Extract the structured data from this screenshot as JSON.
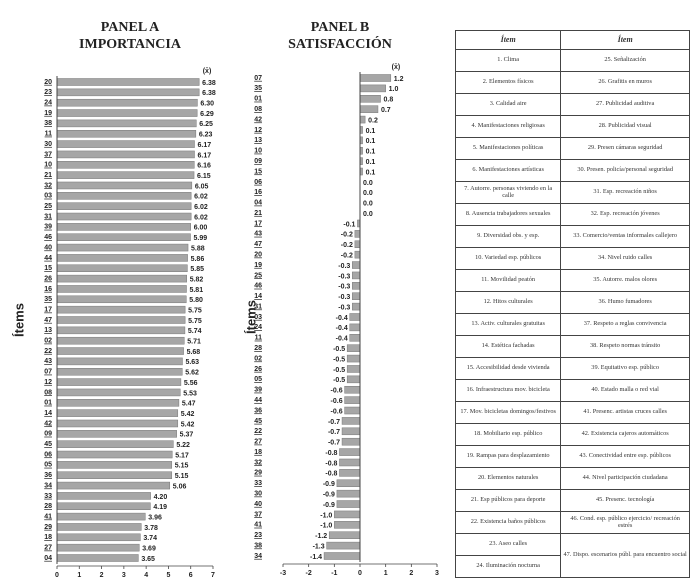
{
  "chart_data": [
    {
      "type": "bar",
      "title": "PANEL A",
      "subtitle": "IMPORTANCIA",
      "y_label": "Ítems",
      "value_header": "(x̄)",
      "categories": [
        "20",
        "23",
        "24",
        "19",
        "38",
        "11",
        "30",
        "37",
        "10",
        "21",
        "32",
        "03",
        "25",
        "31",
        "39",
        "46",
        "40",
        "44",
        "15",
        "26",
        "16",
        "35",
        "17",
        "47",
        "13",
        "02",
        "22",
        "43",
        "07",
        "12",
        "08",
        "01",
        "14",
        "42",
        "09",
        "45",
        "06",
        "05",
        "36",
        "34",
        "33",
        "28",
        "41",
        "29",
        "18",
        "27",
        "04"
      ],
      "values": [
        6.38,
        6.38,
        6.3,
        6.29,
        6.25,
        6.23,
        6.17,
        6.17,
        6.16,
        6.15,
        6.05,
        6.02,
        6.02,
        6.02,
        6.0,
        5.99,
        5.88,
        5.86,
        5.85,
        5.82,
        5.81,
        5.8,
        5.75,
        5.75,
        5.74,
        5.71,
        5.68,
        5.63,
        5.62,
        5.56,
        5.53,
        5.47,
        5.42,
        5.42,
        5.37,
        5.22,
        5.17,
        5.15,
        5.15,
        5.06,
        4.2,
        4.19,
        3.96,
        3.78,
        3.74,
        3.69,
        3.65
      ],
      "value_labels": [
        "6.38",
        "6.38",
        "6.30",
        "6.29",
        "6.25",
        "6.23",
        "6.17",
        "6.17",
        "6.16",
        "6.15",
        "6.05",
        "6.02",
        "6.02",
        "6.02",
        "6.00",
        "5.99",
        "5.88",
        "5.86",
        "5.85",
        "5.82",
        "5.81",
        "5.80",
        "5.75",
        "5.75",
        "5.74",
        "5.71",
        "5.68",
        "5.63",
        "5.62",
        "5.56",
        "5.53",
        "5.47",
        "5.42",
        "5.42",
        "5.37",
        "5.22",
        "5.17",
        "5.15",
        "5.15",
        "5.06",
        "4.20",
        "4.19",
        "3.96",
        "3.78",
        "3.74",
        "3.69",
        "3.65"
      ],
      "color": "#a6a6a6",
      "xlim": [
        0,
        7
      ],
      "xticks": [
        0,
        1,
        2,
        3,
        4,
        5,
        6,
        7
      ]
    },
    {
      "type": "bar",
      "title": "PANEL B",
      "subtitle": "SATISFACCIÓN",
      "y_label": "Ítems",
      "value_header": "(x̄)",
      "categories": [
        "07",
        "35",
        "01",
        "08",
        "42",
        "12",
        "13",
        "10",
        "09",
        "15",
        "06",
        "16",
        "04",
        "21",
        "17",
        "43",
        "47",
        "20",
        "19",
        "25",
        "46",
        "14",
        "31",
        "03",
        "24",
        "11",
        "28",
        "02",
        "26",
        "05",
        "39",
        "44",
        "36",
        "45",
        "22",
        "27",
        "18",
        "32",
        "29",
        "33",
        "30",
        "40",
        "37",
        "41",
        "23",
        "38",
        "34"
      ],
      "values": [
        1.2,
        1.0,
        0.8,
        0.7,
        0.2,
        0.1,
        0.1,
        0.1,
        0.1,
        0.1,
        0.0,
        0.0,
        0.0,
        0.0,
        -0.1,
        -0.2,
        -0.2,
        -0.2,
        -0.3,
        -0.3,
        -0.3,
        -0.3,
        -0.3,
        -0.4,
        -0.4,
        -0.4,
        -0.5,
        -0.5,
        -0.5,
        -0.5,
        -0.6,
        -0.6,
        -0.6,
        -0.7,
        -0.7,
        -0.7,
        -0.8,
        -0.8,
        -0.8,
        -0.9,
        -0.9,
        -0.9,
        -1.0,
        -1.0,
        -1.2,
        -1.3,
        -1.4
      ],
      "value_labels": [
        "1.2",
        "1.0",
        "0.8",
        "0.7",
        "0.2",
        "0.1",
        "0.1",
        "0.1",
        "0.1",
        "0.1",
        "0.0",
        "0.0",
        "0.0",
        "0.0",
        "-0.1",
        "-0.2",
        "-0.2",
        "-0.2",
        "-0.3",
        "-0.3",
        "-0.3",
        "-0.3",
        "-0.3",
        "-0.4",
        "-0.4",
        "-0.4",
        "-0.5",
        "-0.5",
        "-0.5",
        "-0.5",
        "-0.6",
        "-0.6",
        "-0.6",
        "-0.7",
        "-0.7",
        "-0.7",
        "-0.8",
        "-0.8",
        "-0.8",
        "-0.9",
        "-0.9",
        "-0.9",
        "-1.0",
        "-1.0",
        "-1.2",
        "-1.3",
        "-1.4"
      ],
      "color": "#a6a6a6",
      "xlim": [
        -3,
        3
      ],
      "xticks": [
        -3,
        -2,
        -1,
        0,
        1,
        2,
        3
      ]
    }
  ],
  "table": {
    "headers": [
      "Ítem",
      "Ítem"
    ],
    "left": [
      "1. Clima",
      "2. Elementos físicos",
      "3. Calidad aire",
      "4. Manifestaciones religiosas",
      "5. Manifestaciones políticas",
      "6. Manifestaciones artísticas",
      "7. Autorre. personas viviendo en la calle",
      "8. Ausencia trabajadores sexuales",
      "9. Diversidad obs. y esp.",
      "10. Variedad esp. públicos",
      "11. Movilidad peatón",
      "12. Hitos culturales",
      "13. Activ. culturales gratuitas",
      "14. Estética fachadas",
      "15. Accesibilidad desde vivienda",
      "16. Infraestructura mov. bicicleta",
      "17. Mov. bicicletas domingos/festivos",
      "18. Mobiliario esp. público",
      "19. Rampas para desplazamiento",
      "20. Elementos naturales",
      "21. Esp públicos para deporte",
      "22. Existencia baños públicos",
      "23. Aseo calles",
      "24. Iluminación nocturna"
    ],
    "right": [
      "25. Señalización",
      "26. Grafitis en muros",
      "27. Publicidad auditiva",
      "28. Publicidad visual",
      "29. Presen cámaras seguridad",
      "30. Presen. policía/personal seguridad",
      "31. Esp. recreación niños",
      "32. Esp. recreación jóvenes",
      "33. Comercio/ventas informales callejero",
      "34. Nivel ruido calles",
      "35. Autorre. malos olores",
      "36. Humo fumadores",
      "37. Respeto a reglas convivencia",
      "38. Respeto normas tránsito",
      "39. Equitativo esp. público",
      "40. Estado malla o red vial",
      "41. Presenc. artistas cruces calles",
      "42. Existencia cajeros automáticos",
      "43. Conectividad entre esp. públicos",
      "44. Nivel participación ciudadana",
      "45. Presenc. tecnología",
      "46. Cond. esp. público ejercicio/ recreación estrés",
      "47. Dispo. escenarios públ. para encuentro social"
    ]
  }
}
